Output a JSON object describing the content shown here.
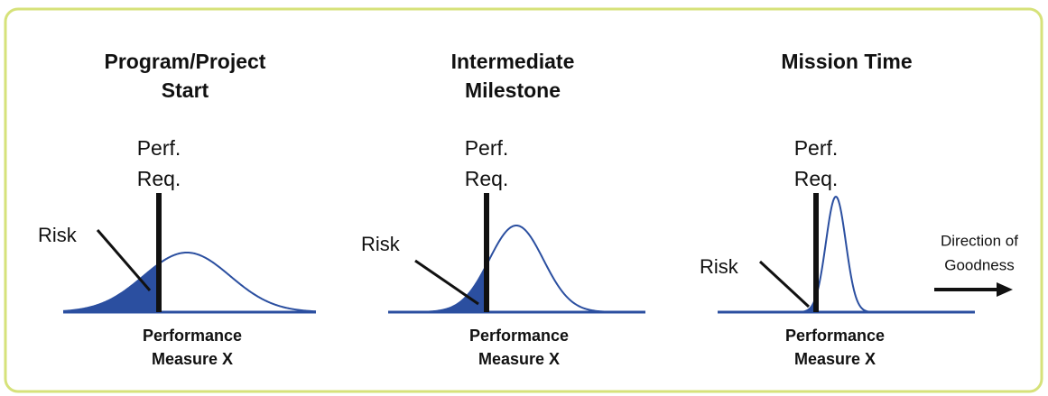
{
  "panels": [
    {
      "title": [
        "Program/Project",
        "Start"
      ],
      "requirement": [
        "Perf.",
        "Req."
      ],
      "risk": "Risk",
      "axis": [
        "Performance",
        "Measure X"
      ]
    },
    {
      "title": [
        "Intermediate",
        "Milestone"
      ],
      "requirement": [
        "Perf.",
        "Req."
      ],
      "risk": "Risk",
      "axis": [
        "Performance",
        "Measure X"
      ]
    },
    {
      "title": [
        "Mission Time"
      ],
      "requirement": [
        "Perf.",
        "Req."
      ],
      "risk": "Risk",
      "axis": [
        "Performance",
        "Measure X"
      ]
    }
  ],
  "direction": [
    "Direction of",
    "Goodness"
  ]
}
